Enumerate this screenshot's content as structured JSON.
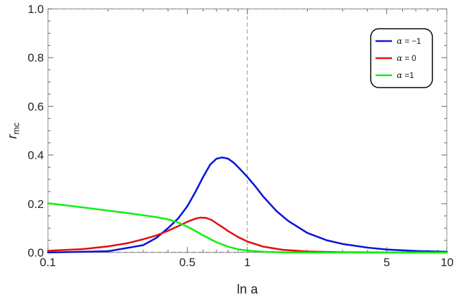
{
  "chart_data": {
    "type": "line",
    "xlabel": "ln a",
    "ylabel": "r",
    "ylabel_sub": "mc",
    "x_scale": "log",
    "xlim": [
      0.1,
      10
    ],
    "ylim": [
      0,
      1.0
    ],
    "x_ticks": [
      {
        "value": 0.1,
        "label": "0.1"
      },
      {
        "value": 0.5,
        "label": "0.5"
      },
      {
        "value": 1,
        "label": "1"
      },
      {
        "value": 5,
        "label": "5"
      },
      {
        "value": 10,
        "label": "10"
      }
    ],
    "y_ticks": [
      {
        "value": 0.0,
        "label": "0.0"
      },
      {
        "value": 0.2,
        "label": "0.2"
      },
      {
        "value": 0.4,
        "label": "0.4"
      },
      {
        "value": 0.6,
        "label": "0.6"
      },
      {
        "value": 0.8,
        "label": "0.8"
      },
      {
        "value": 1.0,
        "label": "1.0"
      }
    ],
    "reference_lines": [
      {
        "orientation": "horizontal",
        "value": 1.0,
        "style": "dashed"
      },
      {
        "orientation": "vertical",
        "value": 1,
        "style": "dashed"
      }
    ],
    "legend_position": "top-right",
    "series": [
      {
        "name": "α = −1",
        "legend_symbol": "α",
        "legend_rest": " = −1",
        "color": "#0a14d8",
        "x": [
          0.1,
          0.2,
          0.3,
          0.35,
          0.4,
          0.45,
          0.5,
          0.55,
          0.6,
          0.65,
          0.7,
          0.75,
          0.8,
          0.85,
          0.9,
          1.0,
          1.1,
          1.2,
          1.4,
          1.6,
          2.0,
          2.5,
          3.0,
          4.0,
          5.0,
          7.0,
          10.0
        ],
        "y": [
          0.0,
          0.005,
          0.03,
          0.06,
          0.1,
          0.14,
          0.19,
          0.25,
          0.31,
          0.36,
          0.385,
          0.39,
          0.385,
          0.37,
          0.35,
          0.31,
          0.27,
          0.23,
          0.17,
          0.13,
          0.08,
          0.05,
          0.035,
          0.02,
          0.012,
          0.006,
          0.003
        ]
      },
      {
        "name": "α = 0",
        "legend_symbol": "α",
        "legend_rest": " = 0",
        "color": "#e01010",
        "x": [
          0.1,
          0.15,
          0.2,
          0.25,
          0.3,
          0.35,
          0.4,
          0.45,
          0.5,
          0.55,
          0.58,
          0.62,
          0.66,
          0.7,
          0.75,
          0.8,
          0.9,
          1.0,
          1.2,
          1.5,
          2.0,
          3.0,
          5.0,
          10.0
        ],
        "y": [
          0.007,
          0.014,
          0.025,
          0.038,
          0.054,
          0.07,
          0.089,
          0.108,
          0.126,
          0.139,
          0.143,
          0.142,
          0.134,
          0.12,
          0.104,
          0.088,
          0.063,
          0.045,
          0.024,
          0.011,
          0.004,
          0.001,
          0.0,
          0.0
        ]
      },
      {
        "name": "α =1",
        "legend_symbol": "α",
        "legend_rest": " =1",
        "color": "#10ee10",
        "x": [
          0.1,
          0.15,
          0.2,
          0.25,
          0.3,
          0.35,
          0.4,
          0.45,
          0.5,
          0.55,
          0.6,
          0.7,
          0.8,
          0.9,
          1.0,
          1.2,
          1.5,
          2.0,
          3.0,
          5.0,
          10.0
        ],
        "y": [
          0.202,
          0.185,
          0.172,
          0.162,
          0.153,
          0.145,
          0.136,
          0.123,
          0.106,
          0.088,
          0.07,
          0.042,
          0.024,
          0.013,
          0.008,
          0.003,
          0.001,
          0.0,
          0.0,
          0.0,
          0.0
        ]
      }
    ]
  }
}
